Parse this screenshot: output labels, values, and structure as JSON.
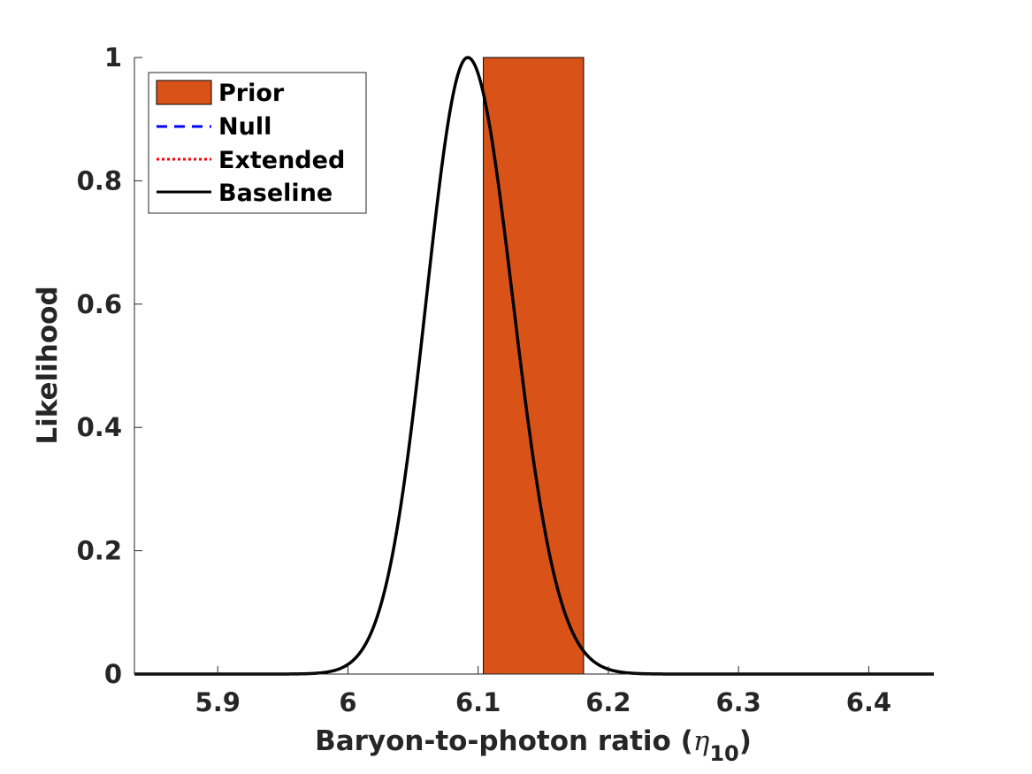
{
  "chart_data": {
    "type": "line",
    "xlabel": "Baryon-to-photon ratio (",
    "xlabel_symbol": "η",
    "xlabel_subscript": "10",
    "xlabel_close": ")",
    "ylabel": "Likelihood",
    "xlim": [
      5.836,
      6.45
    ],
    "ylim": [
      0,
      1
    ],
    "xticks": [
      5.9,
      6.0,
      6.1,
      6.2,
      6.3,
      6.4
    ],
    "xtick_labels": [
      "5.9",
      "6",
      "6.1",
      "6.2",
      "6.3",
      "6.4"
    ],
    "yticks": [
      0,
      0.2,
      0.4,
      0.6,
      0.8,
      1.0
    ],
    "ytick_labels": [
      "0",
      "0.2",
      "0.4",
      "0.6",
      "0.8",
      "1"
    ],
    "grid": false,
    "legend_position": "top-left",
    "prior": {
      "name": "Prior",
      "x_range": [
        6.104,
        6.181
      ],
      "height": 1.0,
      "color": "#D95319"
    },
    "likelihood_curve": {
      "mu": 6.092,
      "sigma_left": 0.0319,
      "sigma_right": 0.0347
    },
    "series": [
      {
        "name": "Null",
        "color": "#0000FF",
        "style": "dashed"
      },
      {
        "name": "Extended",
        "color": "#FF0000",
        "style": "dotted"
      },
      {
        "name": "Baseline",
        "color": "#000000",
        "style": "solid"
      }
    ]
  }
}
